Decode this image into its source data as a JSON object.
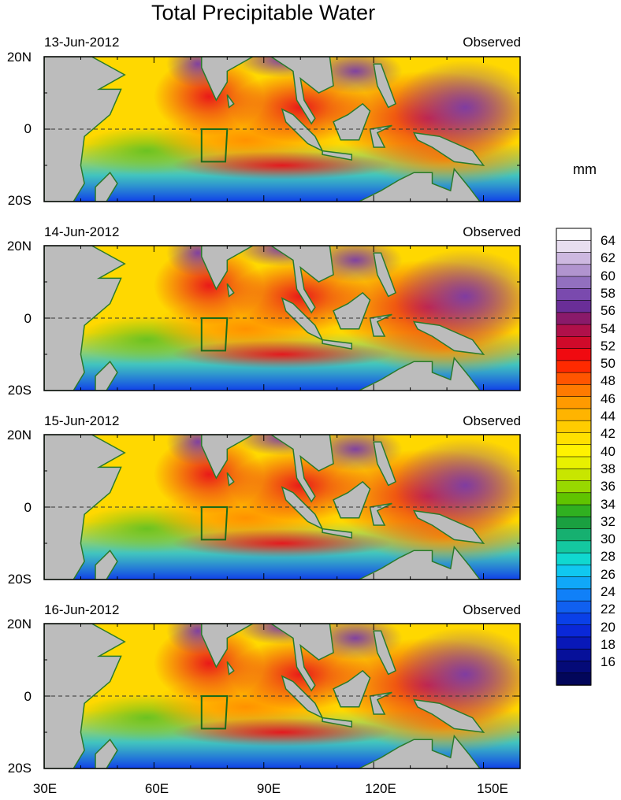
{
  "title": "Total Precipitable Water",
  "units": "mm",
  "panels": [
    {
      "date": "13-Jun-2012",
      "tag": "Observed"
    },
    {
      "date": "14-Jun-2012",
      "tag": "Observed"
    },
    {
      "date": "15-Jun-2012",
      "tag": "Observed"
    },
    {
      "date": "16-Jun-2012",
      "tag": "Observed"
    }
  ],
  "lat_labels": [
    "20N",
    "0",
    "20S"
  ],
  "lon_labels": [
    "30E",
    "60E",
    "90E",
    "120E",
    "150E"
  ],
  "colorbar": {
    "labels": [
      "64",
      "62",
      "60",
      "58",
      "56",
      "54",
      "52",
      "50",
      "48",
      "46",
      "44",
      "42",
      "40",
      "38",
      "36",
      "34",
      "32",
      "30",
      "28",
      "26",
      "24",
      "22",
      "20",
      "18",
      "16"
    ],
    "colors": [
      "#ffffff",
      "#e8def0",
      "#cdb8e0",
      "#b194cf",
      "#9270bf",
      "#7a4aae",
      "#6a2e98",
      "#8a1a6a",
      "#b0104a",
      "#d00a2a",
      "#f00a10",
      "#ff2a00",
      "#ff5500",
      "#ff7a00",
      "#ff9a00",
      "#ffb400",
      "#ffcc00",
      "#ffe000",
      "#fff200",
      "#e8f000",
      "#c8e600",
      "#98d800",
      "#60c400",
      "#30b020",
      "#1aa040",
      "#16b070",
      "#14c8a0",
      "#10d8d0",
      "#10c8f0",
      "#10a8f8",
      "#1080f8",
      "#1060f0",
      "#0a40e8",
      "#0a28d8",
      "#0818b8",
      "#06109a",
      "#040a78",
      "#02065a"
    ]
  }
}
